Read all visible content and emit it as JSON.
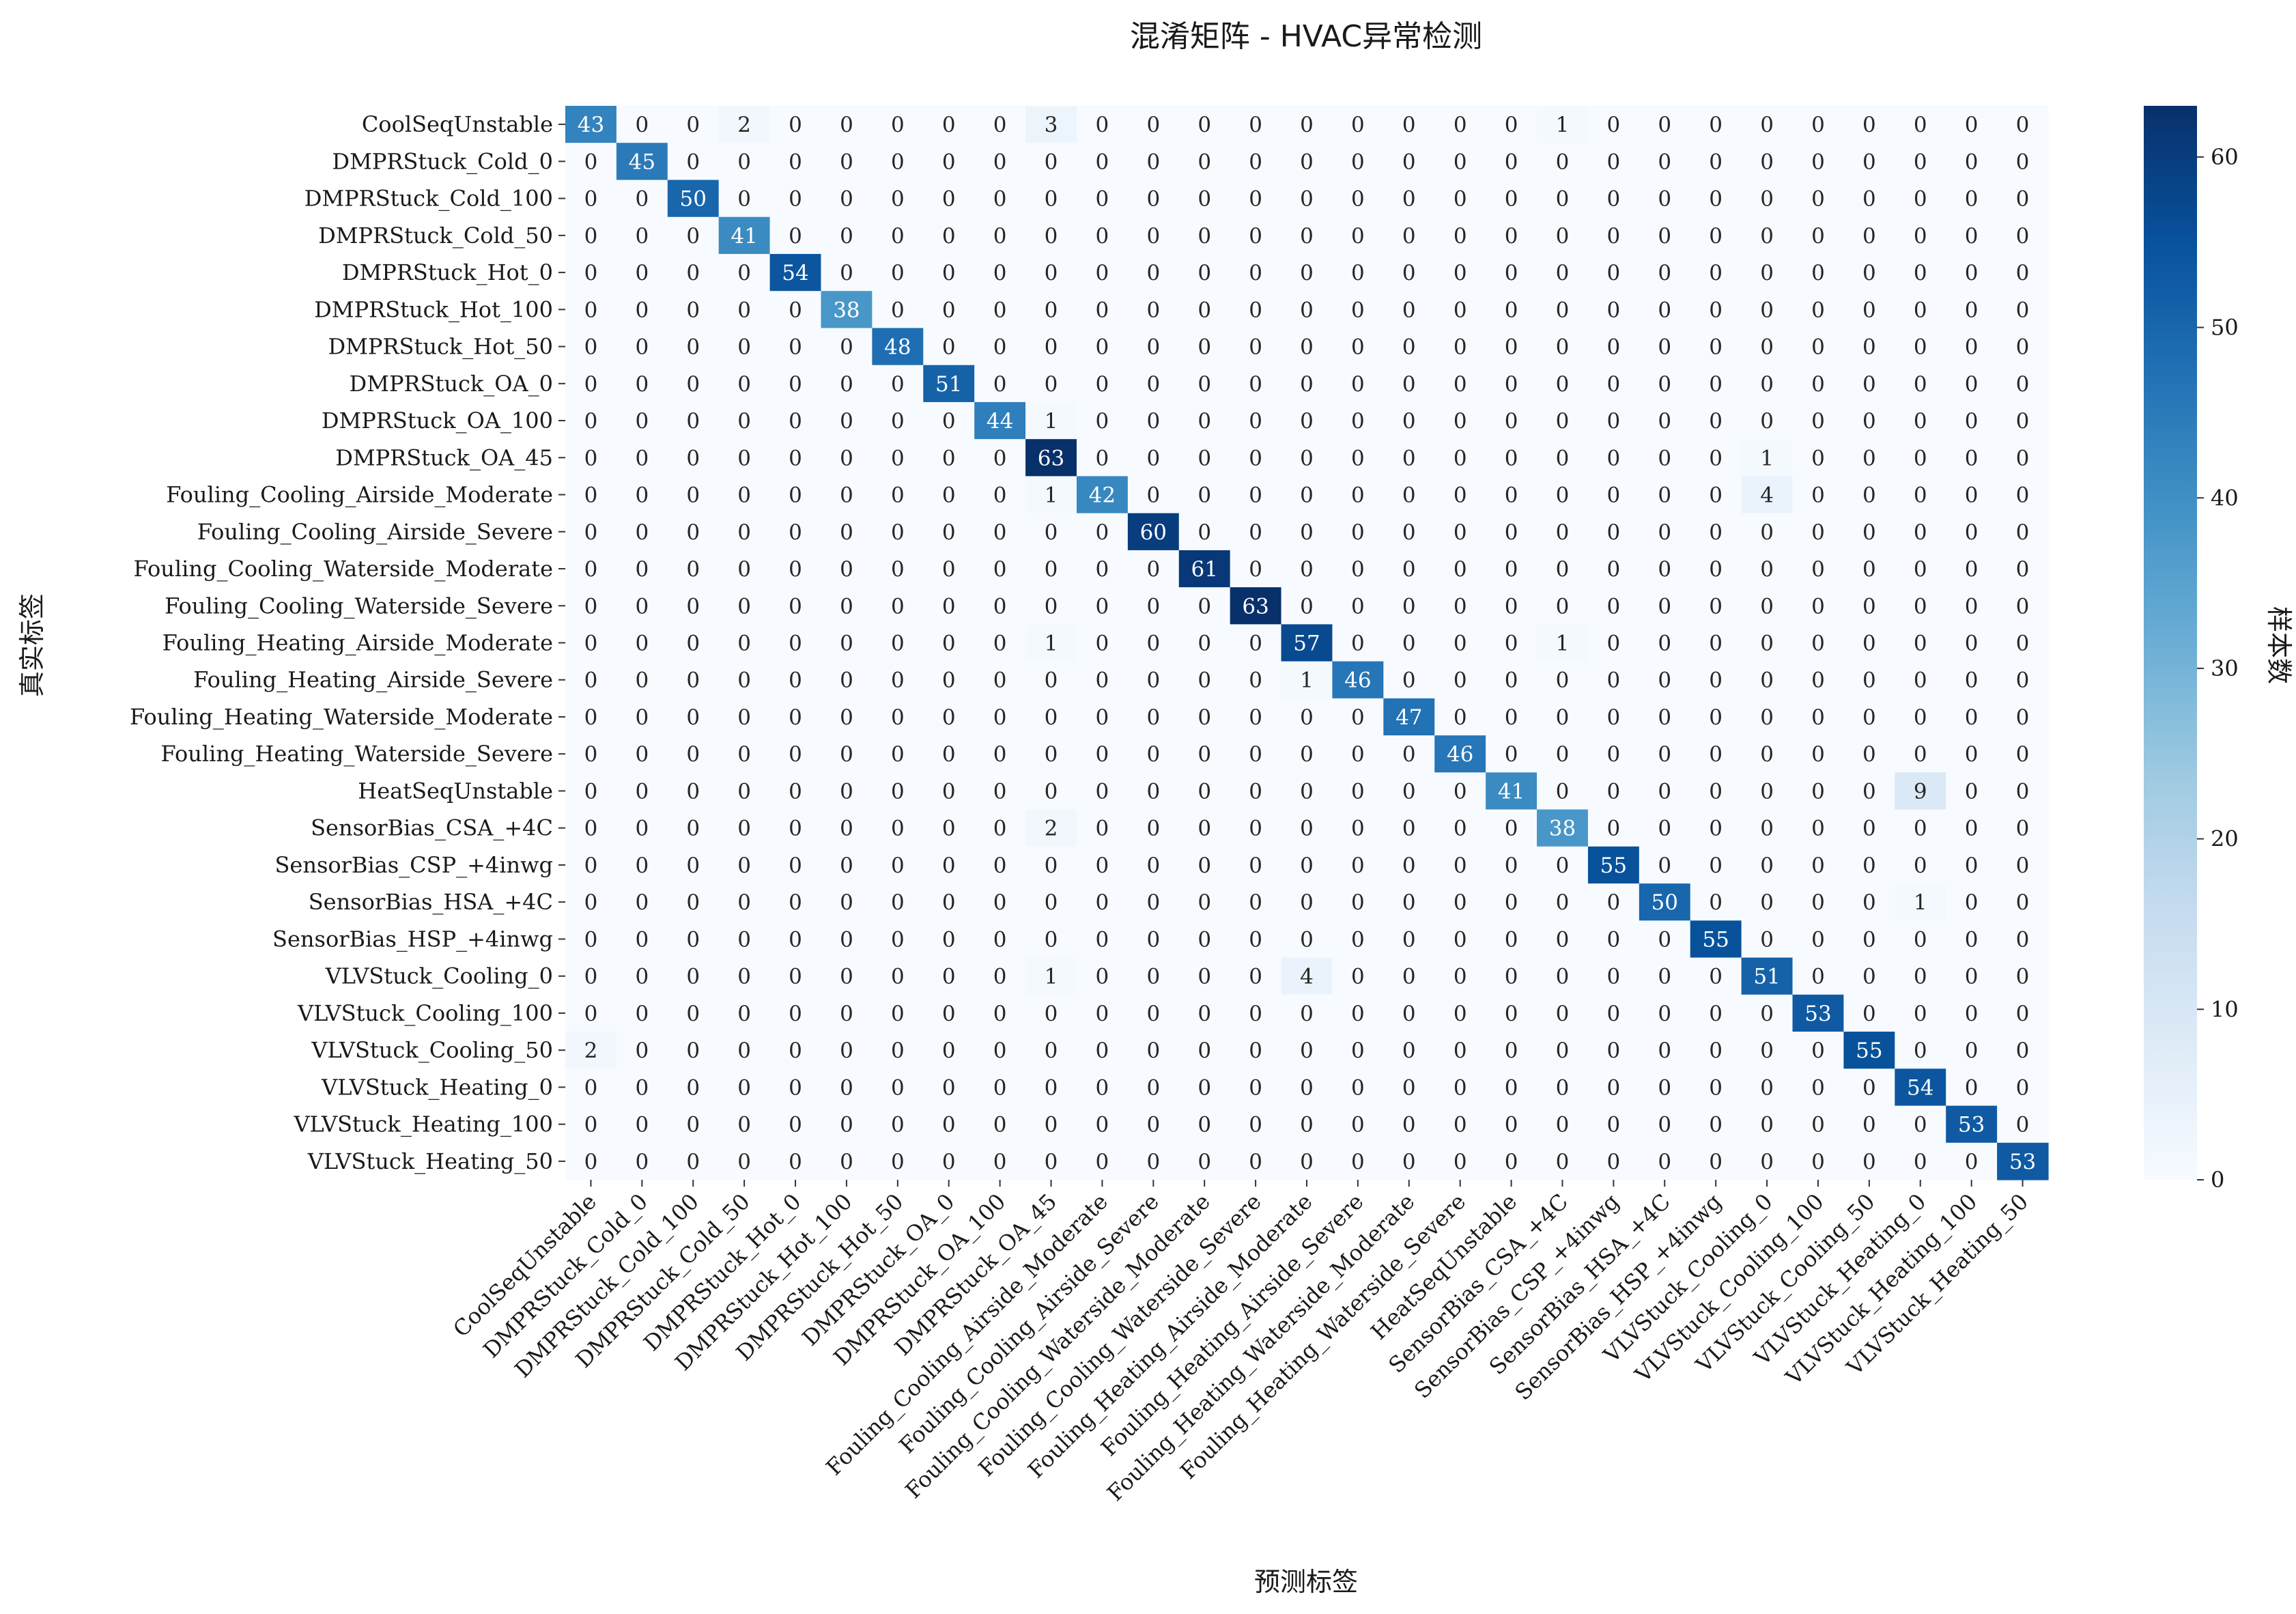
{
  "chart_data": {
    "type": "heatmap",
    "title": "混淆矩阵 - HVAC异常检测",
    "xlabel": "预测标签",
    "ylabel": "真实标签",
    "colorbar_label": "样本数",
    "colorbar_ticks": [
      0,
      10,
      20,
      30,
      40,
      50,
      60
    ],
    "vmin": 0,
    "vmax": 63,
    "colormap": [
      "#f7fbff",
      "#deebf7",
      "#c6dbef",
      "#9ecae1",
      "#6baed6",
      "#4292c6",
      "#2171b5",
      "#08519c",
      "#08306b"
    ],
    "categories": [
      "CoolSeqUnstable",
      "DMPRStuck_Cold_0",
      "DMPRStuck_Cold_100",
      "DMPRStuck_Cold_50",
      "DMPRStuck_Hot_0",
      "DMPRStuck_Hot_100",
      "DMPRStuck_Hot_50",
      "DMPRStuck_OA_0",
      "DMPRStuck_OA_100",
      "DMPRStuck_OA_45",
      "Fouling_Cooling_Airside_Moderate",
      "Fouling_Cooling_Airside_Severe",
      "Fouling_Cooling_Waterside_Moderate",
      "Fouling_Cooling_Waterside_Severe",
      "Fouling_Heating_Airside_Moderate",
      "Fouling_Heating_Airside_Severe",
      "Fouling_Heating_Waterside_Moderate",
      "Fouling_Heating_Waterside_Severe",
      "HeatSeqUnstable",
      "SensorBias_CSA_+4C",
      "SensorBias_CSP_+4inwg",
      "SensorBias_HSA_+4C",
      "SensorBias_HSP_+4inwg",
      "VLVStuck_Cooling_0",
      "VLVStuck_Cooling_100",
      "VLVStuck_Cooling_50",
      "VLVStuck_Heating_0",
      "VLVStuck_Heating_100",
      "VLVStuck_Heating_50"
    ],
    "matrix": [
      [
        43,
        0,
        0,
        2,
        0,
        0,
        0,
        0,
        0,
        3,
        0,
        0,
        0,
        0,
        0,
        0,
        0,
        0,
        0,
        1,
        0,
        0,
        0,
        0,
        0,
        0,
        0,
        0,
        0
      ],
      [
        0,
        45,
        0,
        0,
        0,
        0,
        0,
        0,
        0,
        0,
        0,
        0,
        0,
        0,
        0,
        0,
        0,
        0,
        0,
        0,
        0,
        0,
        0,
        0,
        0,
        0,
        0,
        0,
        0
      ],
      [
        0,
        0,
        50,
        0,
        0,
        0,
        0,
        0,
        0,
        0,
        0,
        0,
        0,
        0,
        0,
        0,
        0,
        0,
        0,
        0,
        0,
        0,
        0,
        0,
        0,
        0,
        0,
        0,
        0
      ],
      [
        0,
        0,
        0,
        41,
        0,
        0,
        0,
        0,
        0,
        0,
        0,
        0,
        0,
        0,
        0,
        0,
        0,
        0,
        0,
        0,
        0,
        0,
        0,
        0,
        0,
        0,
        0,
        0,
        0
      ],
      [
        0,
        0,
        0,
        0,
        54,
        0,
        0,
        0,
        0,
        0,
        0,
        0,
        0,
        0,
        0,
        0,
        0,
        0,
        0,
        0,
        0,
        0,
        0,
        0,
        0,
        0,
        0,
        0,
        0
      ],
      [
        0,
        0,
        0,
        0,
        0,
        38,
        0,
        0,
        0,
        0,
        0,
        0,
        0,
        0,
        0,
        0,
        0,
        0,
        0,
        0,
        0,
        0,
        0,
        0,
        0,
        0,
        0,
        0,
        0
      ],
      [
        0,
        0,
        0,
        0,
        0,
        0,
        48,
        0,
        0,
        0,
        0,
        0,
        0,
        0,
        0,
        0,
        0,
        0,
        0,
        0,
        0,
        0,
        0,
        0,
        0,
        0,
        0,
        0,
        0
      ],
      [
        0,
        0,
        0,
        0,
        0,
        0,
        0,
        51,
        0,
        0,
        0,
        0,
        0,
        0,
        0,
        0,
        0,
        0,
        0,
        0,
        0,
        0,
        0,
        0,
        0,
        0,
        0,
        0,
        0
      ],
      [
        0,
        0,
        0,
        0,
        0,
        0,
        0,
        0,
        44,
        1,
        0,
        0,
        0,
        0,
        0,
        0,
        0,
        0,
        0,
        0,
        0,
        0,
        0,
        0,
        0,
        0,
        0,
        0,
        0
      ],
      [
        0,
        0,
        0,
        0,
        0,
        0,
        0,
        0,
        0,
        63,
        0,
        0,
        0,
        0,
        0,
        0,
        0,
        0,
        0,
        0,
        0,
        0,
        0,
        1,
        0,
        0,
        0,
        0,
        0
      ],
      [
        0,
        0,
        0,
        0,
        0,
        0,
        0,
        0,
        0,
        1,
        42,
        0,
        0,
        0,
        0,
        0,
        0,
        0,
        0,
        0,
        0,
        0,
        0,
        4,
        0,
        0,
        0,
        0,
        0
      ],
      [
        0,
        0,
        0,
        0,
        0,
        0,
        0,
        0,
        0,
        0,
        0,
        60,
        0,
        0,
        0,
        0,
        0,
        0,
        0,
        0,
        0,
        0,
        0,
        0,
        0,
        0,
        0,
        0,
        0
      ],
      [
        0,
        0,
        0,
        0,
        0,
        0,
        0,
        0,
        0,
        0,
        0,
        0,
        61,
        0,
        0,
        0,
        0,
        0,
        0,
        0,
        0,
        0,
        0,
        0,
        0,
        0,
        0,
        0,
        0
      ],
      [
        0,
        0,
        0,
        0,
        0,
        0,
        0,
        0,
        0,
        0,
        0,
        0,
        0,
        63,
        0,
        0,
        0,
        0,
        0,
        0,
        0,
        0,
        0,
        0,
        0,
        0,
        0,
        0,
        0
      ],
      [
        0,
        0,
        0,
        0,
        0,
        0,
        0,
        0,
        0,
        1,
        0,
        0,
        0,
        0,
        57,
        0,
        0,
        0,
        0,
        1,
        0,
        0,
        0,
        0,
        0,
        0,
        0,
        0,
        0
      ],
      [
        0,
        0,
        0,
        0,
        0,
        0,
        0,
        0,
        0,
        0,
        0,
        0,
        0,
        0,
        1,
        46,
        0,
        0,
        0,
        0,
        0,
        0,
        0,
        0,
        0,
        0,
        0,
        0,
        0
      ],
      [
        0,
        0,
        0,
        0,
        0,
        0,
        0,
        0,
        0,
        0,
        0,
        0,
        0,
        0,
        0,
        0,
        47,
        0,
        0,
        0,
        0,
        0,
        0,
        0,
        0,
        0,
        0,
        0,
        0
      ],
      [
        0,
        0,
        0,
        0,
        0,
        0,
        0,
        0,
        0,
        0,
        0,
        0,
        0,
        0,
        0,
        0,
        0,
        46,
        0,
        0,
        0,
        0,
        0,
        0,
        0,
        0,
        0,
        0,
        0
      ],
      [
        0,
        0,
        0,
        0,
        0,
        0,
        0,
        0,
        0,
        0,
        0,
        0,
        0,
        0,
        0,
        0,
        0,
        0,
        41,
        0,
        0,
        0,
        0,
        0,
        0,
        0,
        9,
        0,
        0
      ],
      [
        0,
        0,
        0,
        0,
        0,
        0,
        0,
        0,
        0,
        2,
        0,
        0,
        0,
        0,
        0,
        0,
        0,
        0,
        0,
        38,
        0,
        0,
        0,
        0,
        0,
        0,
        0,
        0,
        0
      ],
      [
        0,
        0,
        0,
        0,
        0,
        0,
        0,
        0,
        0,
        0,
        0,
        0,
        0,
        0,
        0,
        0,
        0,
        0,
        0,
        0,
        55,
        0,
        0,
        0,
        0,
        0,
        0,
        0,
        0
      ],
      [
        0,
        0,
        0,
        0,
        0,
        0,
        0,
        0,
        0,
        0,
        0,
        0,
        0,
        0,
        0,
        0,
        0,
        0,
        0,
        0,
        0,
        50,
        0,
        0,
        0,
        0,
        1,
        0,
        0
      ],
      [
        0,
        0,
        0,
        0,
        0,
        0,
        0,
        0,
        0,
        0,
        0,
        0,
        0,
        0,
        0,
        0,
        0,
        0,
        0,
        0,
        0,
        0,
        55,
        0,
        0,
        0,
        0,
        0,
        0
      ],
      [
        0,
        0,
        0,
        0,
        0,
        0,
        0,
        0,
        0,
        1,
        0,
        0,
        0,
        0,
        4,
        0,
        0,
        0,
        0,
        0,
        0,
        0,
        0,
        51,
        0,
        0,
        0,
        0,
        0
      ],
      [
        0,
        0,
        0,
        0,
        0,
        0,
        0,
        0,
        0,
        0,
        0,
        0,
        0,
        0,
        0,
        0,
        0,
        0,
        0,
        0,
        0,
        0,
        0,
        0,
        53,
        0,
        0,
        0,
        0
      ],
      [
        2,
        0,
        0,
        0,
        0,
        0,
        0,
        0,
        0,
        0,
        0,
        0,
        0,
        0,
        0,
        0,
        0,
        0,
        0,
        0,
        0,
        0,
        0,
        0,
        0,
        55,
        0,
        0,
        0
      ],
      [
        0,
        0,
        0,
        0,
        0,
        0,
        0,
        0,
        0,
        0,
        0,
        0,
        0,
        0,
        0,
        0,
        0,
        0,
        0,
        0,
        0,
        0,
        0,
        0,
        0,
        0,
        54,
        0,
        0
      ],
      [
        0,
        0,
        0,
        0,
        0,
        0,
        0,
        0,
        0,
        0,
        0,
        0,
        0,
        0,
        0,
        0,
        0,
        0,
        0,
        0,
        0,
        0,
        0,
        0,
        0,
        0,
        0,
        53,
        0
      ],
      [
        0,
        0,
        0,
        0,
        0,
        0,
        0,
        0,
        0,
        0,
        0,
        0,
        0,
        0,
        0,
        0,
        0,
        0,
        0,
        0,
        0,
        0,
        0,
        0,
        0,
        0,
        0,
        0,
        53
      ]
    ]
  }
}
